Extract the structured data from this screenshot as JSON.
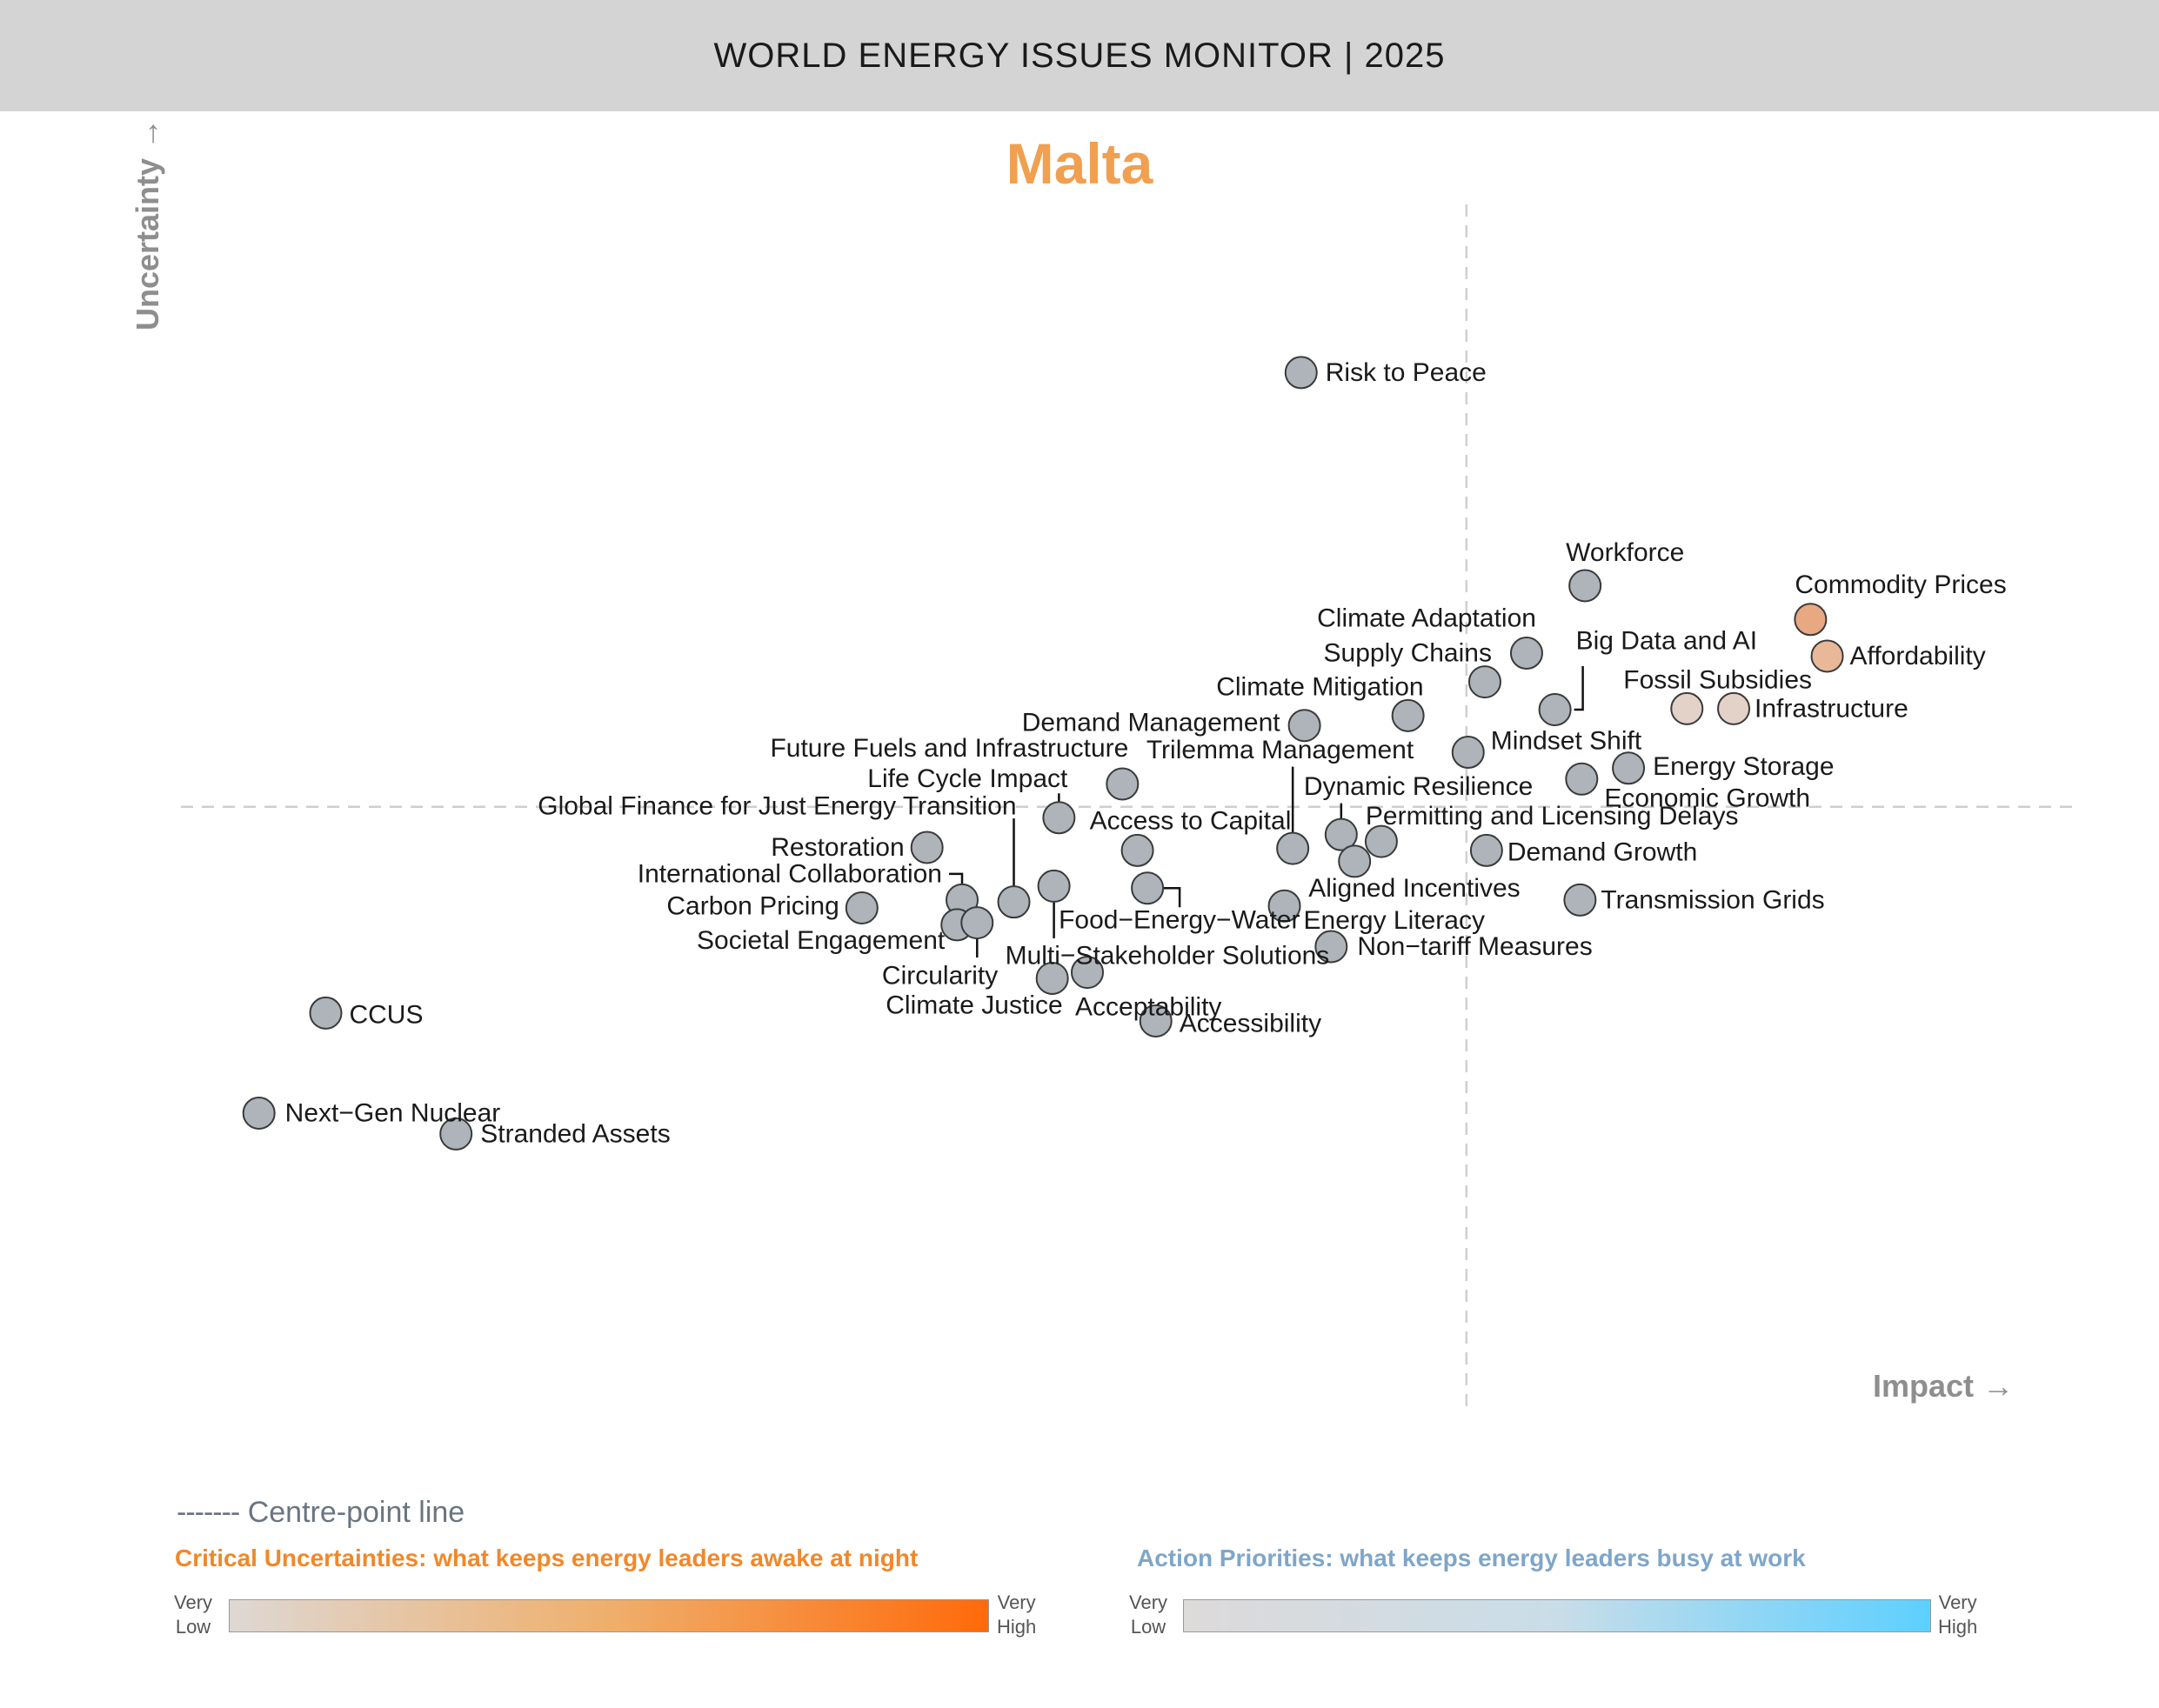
{
  "header": {
    "title": "WORLD ENERGY ISSUES MONITOR | 2025"
  },
  "country": "Malta",
  "chart_data": {
    "type": "scatter",
    "title": "Malta",
    "xlabel": "Impact →",
    "ylabel": "Uncertainty →",
    "xlim": [
      0,
      100
    ],
    "ylim": [
      0,
      100
    ],
    "centre": {
      "x": 72.7,
      "y": 50.2
    },
    "grid": false,
    "points": [
      {
        "label": "Risk to Peace",
        "x": 62.8,
        "y": 94.0,
        "color": "#aeb4ba"
      },
      {
        "label": "Workforce",
        "x": 79.8,
        "y": 72.5,
        "color": "#aeb4ba"
      },
      {
        "label": "Commodity Prices",
        "x": 93.3,
        "y": 69.1,
        "color": "#e8a882"
      },
      {
        "label": "Affordability",
        "x": 94.3,
        "y": 65.4,
        "color": "#e8b898"
      },
      {
        "label": "Climate Adaptation",
        "x": 76.3,
        "y": 65.7,
        "color": "#aeb4ba"
      },
      {
        "label": "Big Data and AI",
        "x": 78.0,
        "y": 60.0,
        "color": "#aeb4ba"
      },
      {
        "label": "Supply Chains",
        "x": 73.8,
        "y": 62.8,
        "color": "#aeb4ba"
      },
      {
        "label": "Fossil Subsidies",
        "x": 85.9,
        "y": 60.1,
        "color": "#e3d2c8"
      },
      {
        "label": "Infrastructure",
        "x": 88.7,
        "y": 60.1,
        "color": "#e3d2c8"
      },
      {
        "label": "Climate Mitigation",
        "x": 69.2,
        "y": 59.4,
        "color": "#aeb4ba"
      },
      {
        "label": "Demand Management",
        "x": 63.0,
        "y": 58.4,
        "color": "#aeb4ba"
      },
      {
        "label": "Mindset Shift",
        "x": 72.8,
        "y": 55.7,
        "color": "#aeb4ba"
      },
      {
        "label": "Energy Storage",
        "x": 82.4,
        "y": 54.1,
        "color": "#aeb4ba"
      },
      {
        "label": "Economic Growth",
        "x": 79.6,
        "y": 53.0,
        "color": "#aeb4ba"
      },
      {
        "label": "Future Fuels and Infrastructure",
        "x": 52.1,
        "y": 52.5,
        "color": "#aeb4ba"
      },
      {
        "label": "Trilemma Management",
        "x": 62.3,
        "y": 46.0,
        "color": "#aeb4ba"
      },
      {
        "label": "Dynamic Resilience",
        "x": 65.2,
        "y": 47.4,
        "color": "#aeb4ba"
      },
      {
        "label": "Life Cycle Impact",
        "x": 48.3,
        "y": 49.1,
        "color": "#aeb4ba"
      },
      {
        "label": "Permitting and Licensing Delays",
        "x": 67.6,
        "y": 46.7,
        "color": "#aeb4ba"
      },
      {
        "label": "Access to Capital",
        "x": 53.0,
        "y": 45.8,
        "color": "#aeb4ba"
      },
      {
        "label": "Global Finance for Just Energy Transition",
        "x": 45.6,
        "y": 40.6,
        "color": "#aeb4ba"
      },
      {
        "label": "Restoration",
        "x": 40.4,
        "y": 46.1,
        "color": "#aeb4ba"
      },
      {
        "label": "Demand Growth",
        "x": 73.9,
        "y": 45.8,
        "color": "#aeb4ba"
      },
      {
        "label": "Aligned Incentives",
        "x": 66.0,
        "y": 44.7,
        "color": "#aeb4ba"
      },
      {
        "label": "International Collaboration",
        "x": 42.5,
        "y": 40.8,
        "color": "#aeb4ba"
      },
      {
        "label": "Food-Energy-Water",
        "x": 53.6,
        "y": 42.0,
        "color": "#aeb4ba"
      },
      {
        "label": "Multi-Stakeholder Solutions",
        "x": 48.0,
        "y": 42.2,
        "color": "#aeb4ba"
      },
      {
        "label": "Energy Literacy",
        "x": 61.8,
        "y": 40.2,
        "color": "#aeb4ba"
      },
      {
        "label": "Transmission Grids",
        "x": 79.5,
        "y": 40.8,
        "color": "#aeb4ba"
      },
      {
        "label": "Carbon Pricing",
        "x": 36.5,
        "y": 40.0,
        "color": "#aeb4ba"
      },
      {
        "label": "Societal Engagement",
        "x": 42.2,
        "y": 38.3,
        "color": "#aeb4ba"
      },
      {
        "label": "Circularity",
        "x": 43.4,
        "y": 38.5,
        "color": "#aeb4ba"
      },
      {
        "label": "Non-tariff Measures",
        "x": 64.6,
        "y": 36.1,
        "color": "#aeb4ba"
      },
      {
        "label": "Acceptability",
        "x": 50.0,
        "y": 33.5,
        "color": "#aeb4ba"
      },
      {
        "label": "Climate Justice",
        "x": 47.9,
        "y": 32.9,
        "color": "#aeb4ba"
      },
      {
        "label": "Accessibility",
        "x": 54.1,
        "y": 28.6,
        "color": "#aeb4ba"
      },
      {
        "label": "CCUS",
        "x": 4.4,
        "y": 29.4,
        "color": "#aeb4ba"
      },
      {
        "label": "Next-Gen Nuclear",
        "x": 0.4,
        "y": 19.3,
        "color": "#aeb4ba"
      },
      {
        "label": "Stranded Assets",
        "x": 12.2,
        "y": 17.2,
        "color": "#aeb4ba"
      }
    ]
  },
  "legend": {
    "centre_dash": "-------",
    "centre_label": "Centre-point line",
    "critical_heading": "Critical Uncertainties: what keeps energy leaders awake at night",
    "action_heading": "Action Priorities: what keeps energy leaders busy at work",
    "very_low": [
      "Very",
      "Low"
    ],
    "very_high": [
      "Very",
      "High"
    ]
  }
}
